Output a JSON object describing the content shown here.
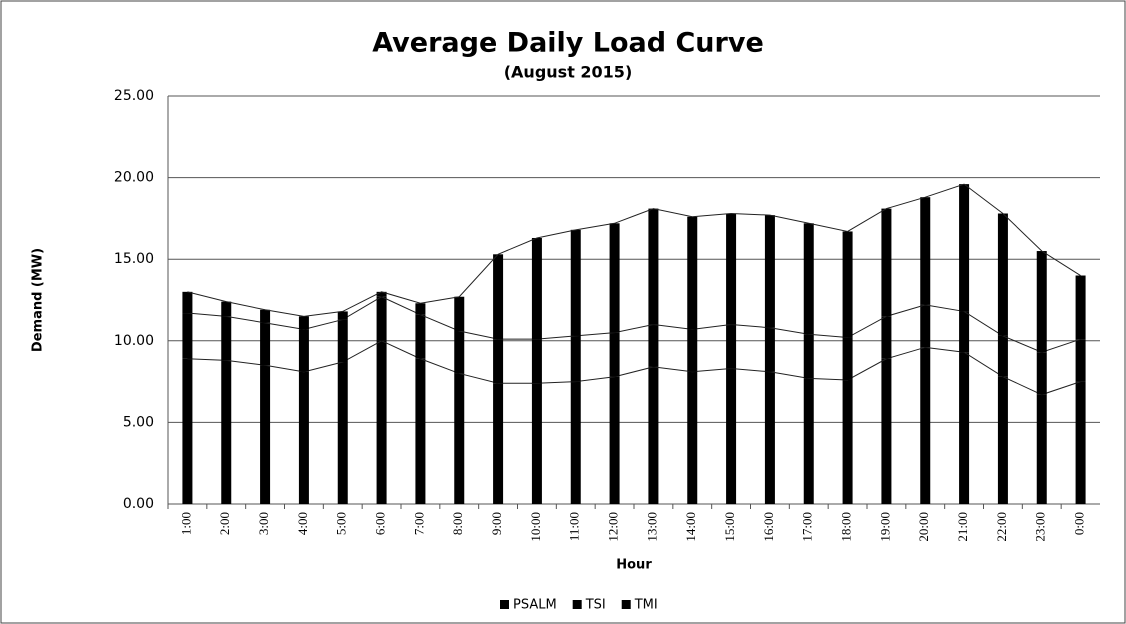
{
  "chart_data": {
    "type": "bar",
    "stacked": true,
    "title": "Average Daily Load Curve",
    "subtitle": "(August 2015)",
    "x_label": "Hour",
    "y_label": "Demand (MW)",
    "categories": [
      "1:00",
      "2:00",
      "3:00",
      "4:00",
      "5:00",
      "6:00",
      "7:00",
      "8:00",
      "9:00",
      "10:00",
      "11:00",
      "12:00",
      "13:00",
      "14:00",
      "15:00",
      "16:00",
      "17:00",
      "18:00",
      "19:00",
      "20:00",
      "21:00",
      "22:00",
      "23:00",
      "0:00"
    ],
    "series": [
      {
        "name": "PSALM",
        "color": "#000000",
        "values": [
          8.9,
          8.8,
          8.5,
          8.1,
          8.7,
          10.0,
          8.9,
          8.0,
          7.4,
          7.4,
          7.5,
          7.8,
          8.4,
          8.1,
          8.3,
          8.1,
          7.7,
          7.6,
          8.9,
          9.6,
          9.3,
          7.8,
          6.7,
          7.5
        ]
      },
      {
        "name": "TSI",
        "color": "#000000",
        "values": [
          2.8,
          2.7,
          2.6,
          2.6,
          2.6,
          2.7,
          2.7,
          2.6,
          2.7,
          2.7,
          2.8,
          2.7,
          2.6,
          2.6,
          2.7,
          2.7,
          2.7,
          2.6,
          2.6,
          2.6,
          2.5,
          2.5,
          2.6,
          2.6
        ]
      },
      {
        "name": "TMI",
        "color": "#000000",
        "values": [
          1.3,
          0.9,
          0.8,
          0.8,
          0.5,
          0.3,
          0.7,
          2.1,
          5.2,
          6.2,
          6.5,
          6.7,
          7.1,
          6.9,
          6.8,
          6.9,
          6.8,
          6.5,
          6.6,
          6.6,
          7.8,
          7.5,
          6.2,
          3.9
        ]
      }
    ],
    "ylim": [
      0,
      25
    ],
    "yticks": [
      {
        "value": 0,
        "label": "0.00"
      },
      {
        "value": 5,
        "label": "5.00"
      },
      {
        "value": 10,
        "label": "10.00"
      },
      {
        "value": 15,
        "label": "15.00"
      },
      {
        "value": 20,
        "label": "20.00"
      },
      {
        "value": 25,
        "label": "25.00"
      }
    ],
    "grid": true,
    "series_lines": true,
    "legend": "bottom"
  }
}
